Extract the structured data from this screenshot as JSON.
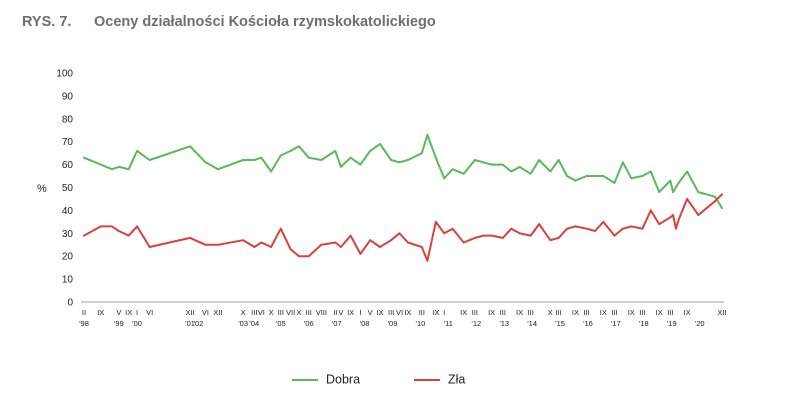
{
  "figure": {
    "number": "RYS. 7.",
    "title": "Oceny działalności Kościoła rzymskokatolickiego"
  },
  "chart_data": {
    "type": "line",
    "title": "Oceny działalności Kościoła rzymskokatolickiego",
    "ylabel": "%",
    "xlabel": "",
    "ylim": [
      0,
      100
    ],
    "yticks": [
      0,
      10,
      20,
      30,
      40,
      50,
      60,
      70,
      80,
      90,
      100
    ],
    "xlim": [
      1998.1,
      2020.95
    ],
    "month_ticks": [
      {
        "x": 1998.1,
        "label": "II"
      },
      {
        "x": 1998.7,
        "label": "IX"
      },
      {
        "x": 1999.35,
        "label": "V"
      },
      {
        "x": 1999.7,
        "label": "IX"
      },
      {
        "x": 2000.0,
        "label": "I"
      },
      {
        "x": 2000.45,
        "label": "VI"
      },
      {
        "x": 2001.9,
        "label": "XII"
      },
      {
        "x": 2002.45,
        "label": "VI"
      },
      {
        "x": 2002.9,
        "label": "XII"
      },
      {
        "x": 2003.8,
        "label": "X"
      },
      {
        "x": 2004.2,
        "label": "III"
      },
      {
        "x": 2004.45,
        "label": "VI"
      },
      {
        "x": 2004.8,
        "label": "X"
      },
      {
        "x": 2005.15,
        "label": "III"
      },
      {
        "x": 2005.5,
        "label": "VII"
      },
      {
        "x": 2005.8,
        "label": "X"
      },
      {
        "x": 2006.15,
        "label": "III"
      },
      {
        "x": 2006.6,
        "label": "VIII"
      },
      {
        "x": 2007.1,
        "label": "II"
      },
      {
        "x": 2007.3,
        "label": "V"
      },
      {
        "x": 2007.65,
        "label": "IX"
      },
      {
        "x": 2008.0,
        "label": "I"
      },
      {
        "x": 2008.35,
        "label": "V"
      },
      {
        "x": 2008.7,
        "label": "IX"
      },
      {
        "x": 2009.1,
        "label": "III"
      },
      {
        "x": 2009.4,
        "label": "VI"
      },
      {
        "x": 2009.7,
        "label": "IX"
      },
      {
        "x": 2010.2,
        "label": "III"
      },
      {
        "x": 2010.7,
        "label": "IX"
      },
      {
        "x": 2011.0,
        "label": "I"
      },
      {
        "x": 2011.7,
        "label": "IX"
      },
      {
        "x": 2012.1,
        "label": "III"
      },
      {
        "x": 2012.7,
        "label": "IX"
      },
      {
        "x": 2013.1,
        "label": "III"
      },
      {
        "x": 2013.7,
        "label": "IX"
      },
      {
        "x": 2014.1,
        "label": "III"
      },
      {
        "x": 2014.8,
        "label": "X"
      },
      {
        "x": 2015.1,
        "label": "III"
      },
      {
        "x": 2015.7,
        "label": "IX"
      },
      {
        "x": 2016.1,
        "label": "III"
      },
      {
        "x": 2016.7,
        "label": "IX"
      },
      {
        "x": 2017.1,
        "label": "III"
      },
      {
        "x": 2017.7,
        "label": "IX"
      },
      {
        "x": 2018.1,
        "label": "III"
      },
      {
        "x": 2018.7,
        "label": "IX"
      },
      {
        "x": 2019.1,
        "label": "III"
      },
      {
        "x": 2019.7,
        "label": "IX"
      },
      {
        "x": 2020.95,
        "label": "XII"
      }
    ],
    "year_ticks": [
      {
        "x": 1998.1,
        "label": "'98"
      },
      {
        "x": 1999.35,
        "label": "'99"
      },
      {
        "x": 2000.0,
        "label": "'00"
      },
      {
        "x": 2001.9,
        "label": "'01"
      },
      {
        "x": 2002.2,
        "label": "'02"
      },
      {
        "x": 2003.8,
        "label": "'03"
      },
      {
        "x": 2004.2,
        "label": "'04"
      },
      {
        "x": 2005.15,
        "label": "'05"
      },
      {
        "x": 2006.15,
        "label": "'06"
      },
      {
        "x": 2007.15,
        "label": "'07"
      },
      {
        "x": 2008.15,
        "label": "'08"
      },
      {
        "x": 2009.15,
        "label": "'09"
      },
      {
        "x": 2010.15,
        "label": "'10"
      },
      {
        "x": 2011.15,
        "label": "'11"
      },
      {
        "x": 2012.15,
        "label": "'12"
      },
      {
        "x": 2013.15,
        "label": "'13"
      },
      {
        "x": 2014.15,
        "label": "'14"
      },
      {
        "x": 2015.15,
        "label": "'15"
      },
      {
        "x": 2016.15,
        "label": "'16"
      },
      {
        "x": 2017.15,
        "label": "'17"
      },
      {
        "x": 2018.15,
        "label": "'18"
      },
      {
        "x": 2019.15,
        "label": "'19"
      },
      {
        "x": 2020.15,
        "label": "'20"
      }
    ],
    "series": [
      {
        "name": "Dobra",
        "color": "#5cb85c",
        "x": [
          1998.1,
          1998.7,
          1999.1,
          1999.35,
          1999.7,
          2000.0,
          2000.45,
          2001.9,
          2002.45,
          2002.9,
          2003.8,
          2004.2,
          2004.45,
          2004.8,
          2005.15,
          2005.5,
          2005.8,
          2006.15,
          2006.6,
          2007.1,
          2007.3,
          2007.65,
          2008.0,
          2008.35,
          2008.7,
          2009.1,
          2009.4,
          2009.7,
          2010.2,
          2010.4,
          2010.7,
          2011.0,
          2011.3,
          2011.7,
          2012.1,
          2012.4,
          2012.7,
          2013.1,
          2013.4,
          2013.7,
          2014.1,
          2014.4,
          2014.8,
          2015.1,
          2015.4,
          2015.7,
          2016.1,
          2016.4,
          2016.7,
          2017.1,
          2017.4,
          2017.7,
          2018.1,
          2018.4,
          2018.7,
          2019.1,
          2019.2,
          2019.3,
          2019.4,
          2019.7,
          2020.1,
          2020.7,
          2020.95
        ],
        "values": [
          63,
          60,
          58,
          59,
          58,
          66,
          62,
          68,
          61,
          58,
          62,
          62,
          63,
          57,
          64,
          66,
          68,
          63,
          62,
          66,
          59,
          63,
          60,
          66,
          69,
          62,
          61,
          62,
          65,
          73,
          63,
          54,
          58,
          56,
          62,
          61,
          60,
          60,
          57,
          59,
          56,
          62,
          57,
          62,
          55,
          53,
          55,
          55,
          55,
          52,
          61,
          54,
          55,
          57,
          48,
          53,
          48,
          50,
          52,
          57,
          48,
          46,
          41
        ]
      },
      {
        "name": "Zła",
        "color": "#d9413d",
        "x": [
          1998.1,
          1998.7,
          1999.1,
          1999.35,
          1999.7,
          2000.0,
          2000.45,
          2001.9,
          2002.45,
          2002.9,
          2003.8,
          2004.2,
          2004.45,
          2004.8,
          2005.15,
          2005.5,
          2005.8,
          2006.15,
          2006.6,
          2007.1,
          2007.3,
          2007.65,
          2008.0,
          2008.35,
          2008.7,
          2009.1,
          2009.4,
          2009.7,
          2010.2,
          2010.4,
          2010.7,
          2011.0,
          2011.3,
          2011.7,
          2012.1,
          2012.4,
          2012.7,
          2013.1,
          2013.4,
          2013.7,
          2014.1,
          2014.4,
          2014.8,
          2015.1,
          2015.4,
          2015.7,
          2016.1,
          2016.4,
          2016.7,
          2017.1,
          2017.4,
          2017.7,
          2018.1,
          2018.4,
          2018.7,
          2019.1,
          2019.2,
          2019.3,
          2019.4,
          2019.7,
          2020.1,
          2020.7,
          2020.95
        ],
        "values": [
          29,
          33,
          33,
          31,
          29,
          33,
          24,
          28,
          25,
          25,
          27,
          24,
          26,
          24,
          32,
          23,
          20,
          20,
          25,
          26,
          24,
          29,
          21,
          27,
          24,
          27,
          30,
          26,
          24,
          18,
          35,
          30,
          32,
          26,
          28,
          29,
          29,
          28,
          32,
          30,
          29,
          34,
          27,
          28,
          32,
          33,
          32,
          31,
          35,
          29,
          32,
          33,
          32,
          40,
          34,
          37,
          38,
          32,
          36,
          45,
          38,
          44,
          47
        ]
      }
    ],
    "legend": [
      "Dobra",
      "Zła"
    ]
  }
}
